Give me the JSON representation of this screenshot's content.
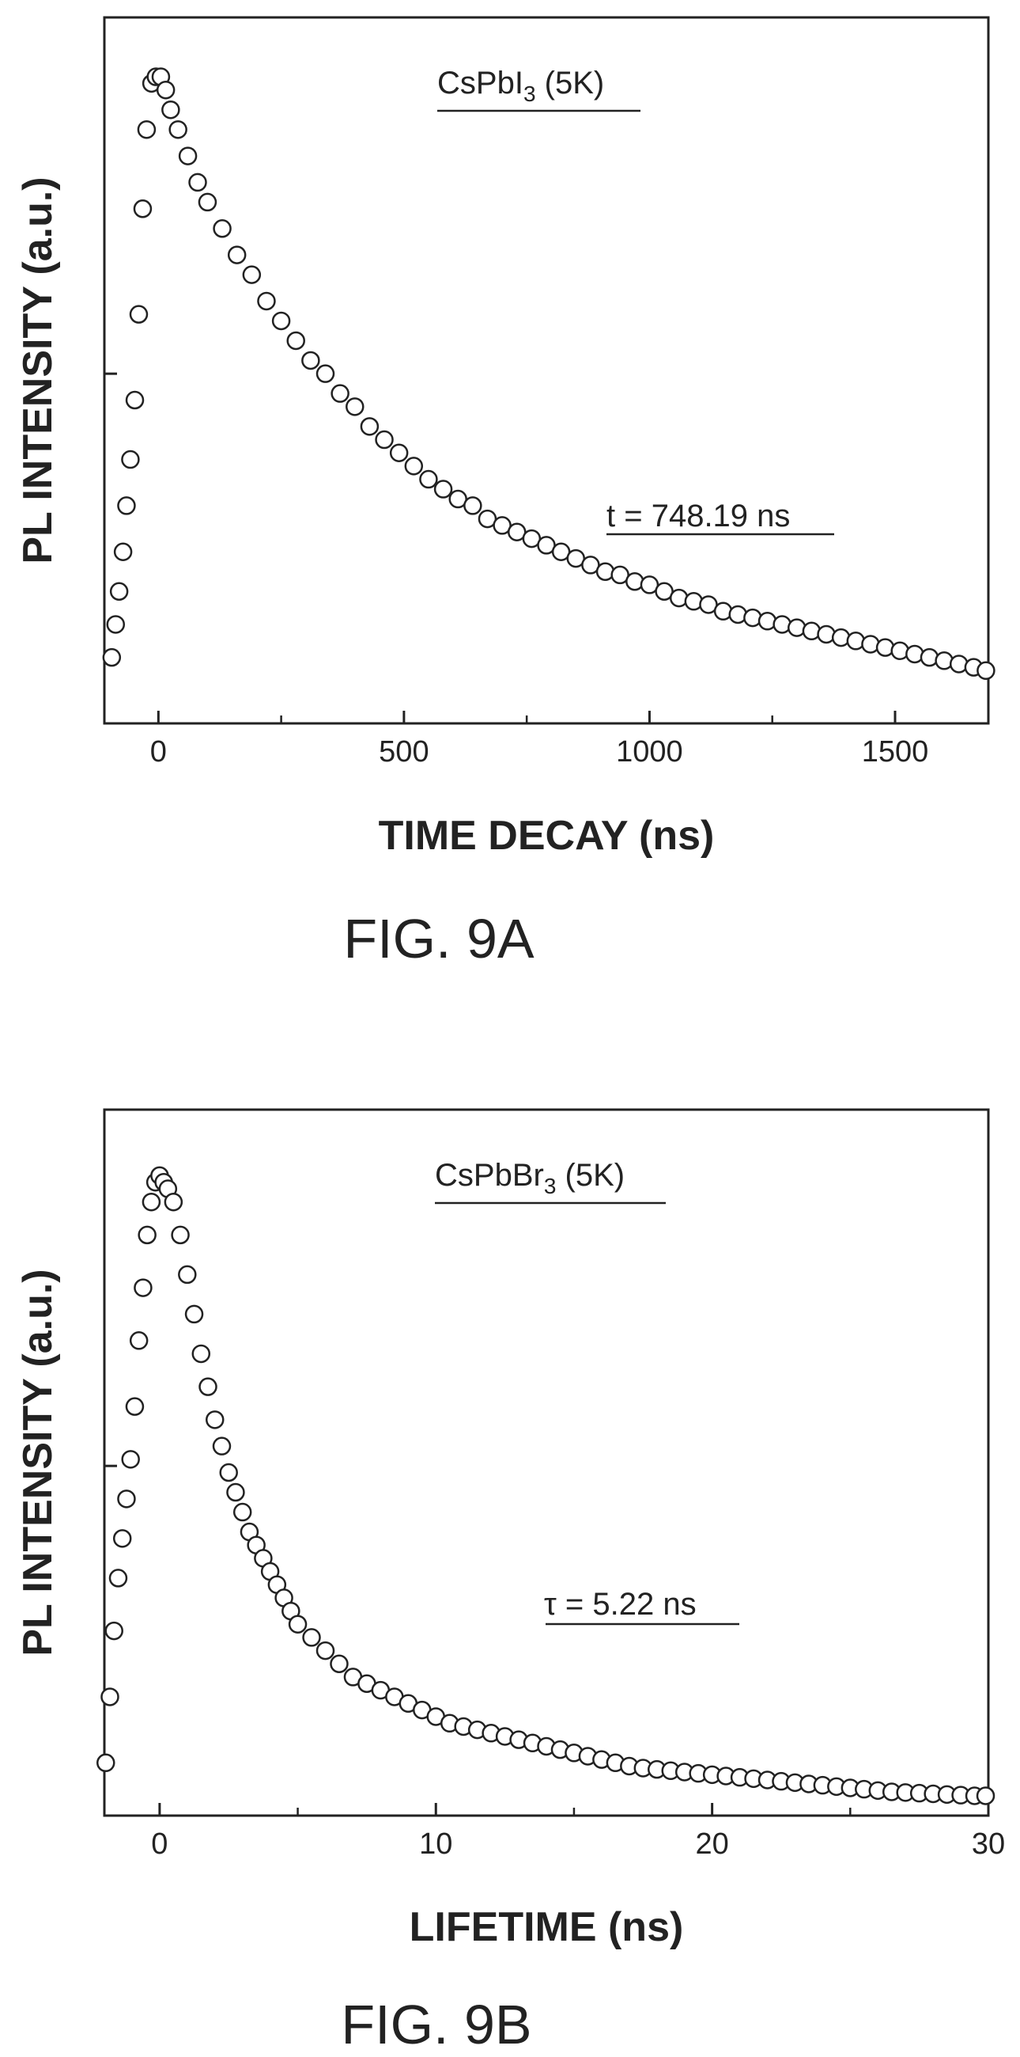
{
  "figures": [
    {
      "caption": "FIG. 9A"
    },
    {
      "caption": "FIG. 9B"
    }
  ],
  "chart_data": [
    {
      "type": "scatter",
      "title": "",
      "annotation_compound": "CsPbI",
      "annotation_subscript": "3",
      "annotation_condition": " (5K)",
      "annotation_lifetime": "t = 748.19 ns",
      "xlabel": "TIME DECAY (ns)",
      "ylabel": "PL INTENSITY (a.u.)",
      "xlim": [
        -110,
        1690
      ],
      "ylim": [
        0,
        1.07
      ],
      "xticks": [
        0,
        500,
        1000,
        1500
      ],
      "xtick_labels": [
        "0",
        "500",
        "1000",
        "1500"
      ],
      "x_minor_ticks": [
        250,
        750,
        1250
      ],
      "y_tick_value": 0.53,
      "marker": "open-circle",
      "series": [
        {
          "x": [
            -95,
            -87,
            -80,
            -72,
            -65,
            -57,
            -48,
            -40,
            -32,
            -24,
            -14,
            -5,
            5,
            15,
            25,
            40,
            60,
            80,
            100,
            130,
            160,
            190,
            220,
            250,
            280,
            310,
            340,
            370,
            400,
            430,
            460,
            490,
            520,
            550,
            580,
            610,
            640,
            670,
            700,
            730,
            760,
            790,
            820,
            850,
            880,
            910,
            940,
            970,
            1000,
            1030,
            1060,
            1090,
            1120,
            1150,
            1180,
            1210,
            1240,
            1270,
            1300,
            1330,
            1360,
            1390,
            1420,
            1450,
            1480,
            1510,
            1540,
            1570,
            1600,
            1630,
            1660,
            1685
          ],
          "y": [
            0.1,
            0.15,
            0.2,
            0.26,
            0.33,
            0.4,
            0.49,
            0.62,
            0.78,
            0.9,
            0.97,
            0.98,
            0.98,
            0.96,
            0.93,
            0.9,
            0.86,
            0.82,
            0.79,
            0.75,
            0.71,
            0.68,
            0.64,
            0.61,
            0.58,
            0.55,
            0.53,
            0.5,
            0.48,
            0.45,
            0.43,
            0.41,
            0.39,
            0.37,
            0.355,
            0.34,
            0.33,
            0.31,
            0.3,
            0.29,
            0.28,
            0.27,
            0.26,
            0.25,
            0.24,
            0.23,
            0.225,
            0.215,
            0.21,
            0.2,
            0.19,
            0.185,
            0.18,
            0.17,
            0.165,
            0.16,
            0.155,
            0.15,
            0.145,
            0.14,
            0.135,
            0.13,
            0.125,
            0.12,
            0.115,
            0.11,
            0.105,
            0.1,
            0.095,
            0.09,
            0.085,
            0.08
          ]
        }
      ]
    },
    {
      "type": "scatter",
      "title": "",
      "annotation_compound": "CsPbBr",
      "annotation_subscript": "3",
      "annotation_condition": " (5K)",
      "annotation_lifetime": "τ  = 5.22 ns",
      "xlabel": "LIFETIME  (ns)",
      "ylabel": "PL INTENSITY (a.u.)",
      "xlim": [
        -2,
        30
      ],
      "ylim": [
        0,
        1.07
      ],
      "xticks": [
        0,
        10,
        20,
        30
      ],
      "xtick_labels": [
        "0",
        "10",
        "20",
        "30"
      ],
      "x_minor_ticks": [
        5,
        15,
        25
      ],
      "y_tick_value": 0.53,
      "marker": "open-circle",
      "series": [
        {
          "x": [
            -1.95,
            -1.8,
            -1.65,
            -1.5,
            -1.35,
            -1.2,
            -1.05,
            -0.9,
            -0.75,
            -0.6,
            -0.45,
            -0.3,
            -0.15,
            0.0,
            0.15,
            0.3,
            0.5,
            0.75,
            1.0,
            1.25,
            1.5,
            1.75,
            2.0,
            2.25,
            2.5,
            2.75,
            3.0,
            3.25,
            3.5,
            3.75,
            4.0,
            4.25,
            4.5,
            4.75,
            5.0,
            5.5,
            6.0,
            6.5,
            7.0,
            7.5,
            8.0,
            8.5,
            9.0,
            9.5,
            10.0,
            10.5,
            11.0,
            11.5,
            12.0,
            12.5,
            13.0,
            13.5,
            14.0,
            14.5,
            15.0,
            15.5,
            16.0,
            16.5,
            17.0,
            17.5,
            18.0,
            18.5,
            19.0,
            19.5,
            20.0,
            20.5,
            21.0,
            21.5,
            22.0,
            22.5,
            23.0,
            23.5,
            24.0,
            24.5,
            25.0,
            25.5,
            26.0,
            26.5,
            27.0,
            27.5,
            28.0,
            28.5,
            29.0,
            29.5,
            29.9
          ],
          "y": [
            0.08,
            0.18,
            0.28,
            0.36,
            0.42,
            0.48,
            0.54,
            0.62,
            0.72,
            0.8,
            0.88,
            0.93,
            0.96,
            0.97,
            0.96,
            0.95,
            0.93,
            0.88,
            0.82,
            0.76,
            0.7,
            0.65,
            0.6,
            0.56,
            0.52,
            0.49,
            0.46,
            0.43,
            0.41,
            0.39,
            0.37,
            0.35,
            0.33,
            0.31,
            0.29,
            0.27,
            0.25,
            0.23,
            0.21,
            0.2,
            0.19,
            0.18,
            0.17,
            0.16,
            0.15,
            0.14,
            0.135,
            0.13,
            0.125,
            0.12,
            0.115,
            0.11,
            0.105,
            0.1,
            0.095,
            0.09,
            0.085,
            0.08,
            0.075,
            0.072,
            0.07,
            0.068,
            0.066,
            0.064,
            0.062,
            0.06,
            0.058,
            0.056,
            0.054,
            0.052,
            0.05,
            0.048,
            0.046,
            0.044,
            0.042,
            0.04,
            0.038,
            0.036,
            0.035,
            0.034,
            0.033,
            0.032,
            0.031,
            0.03,
            0.03
          ]
        }
      ]
    }
  ]
}
